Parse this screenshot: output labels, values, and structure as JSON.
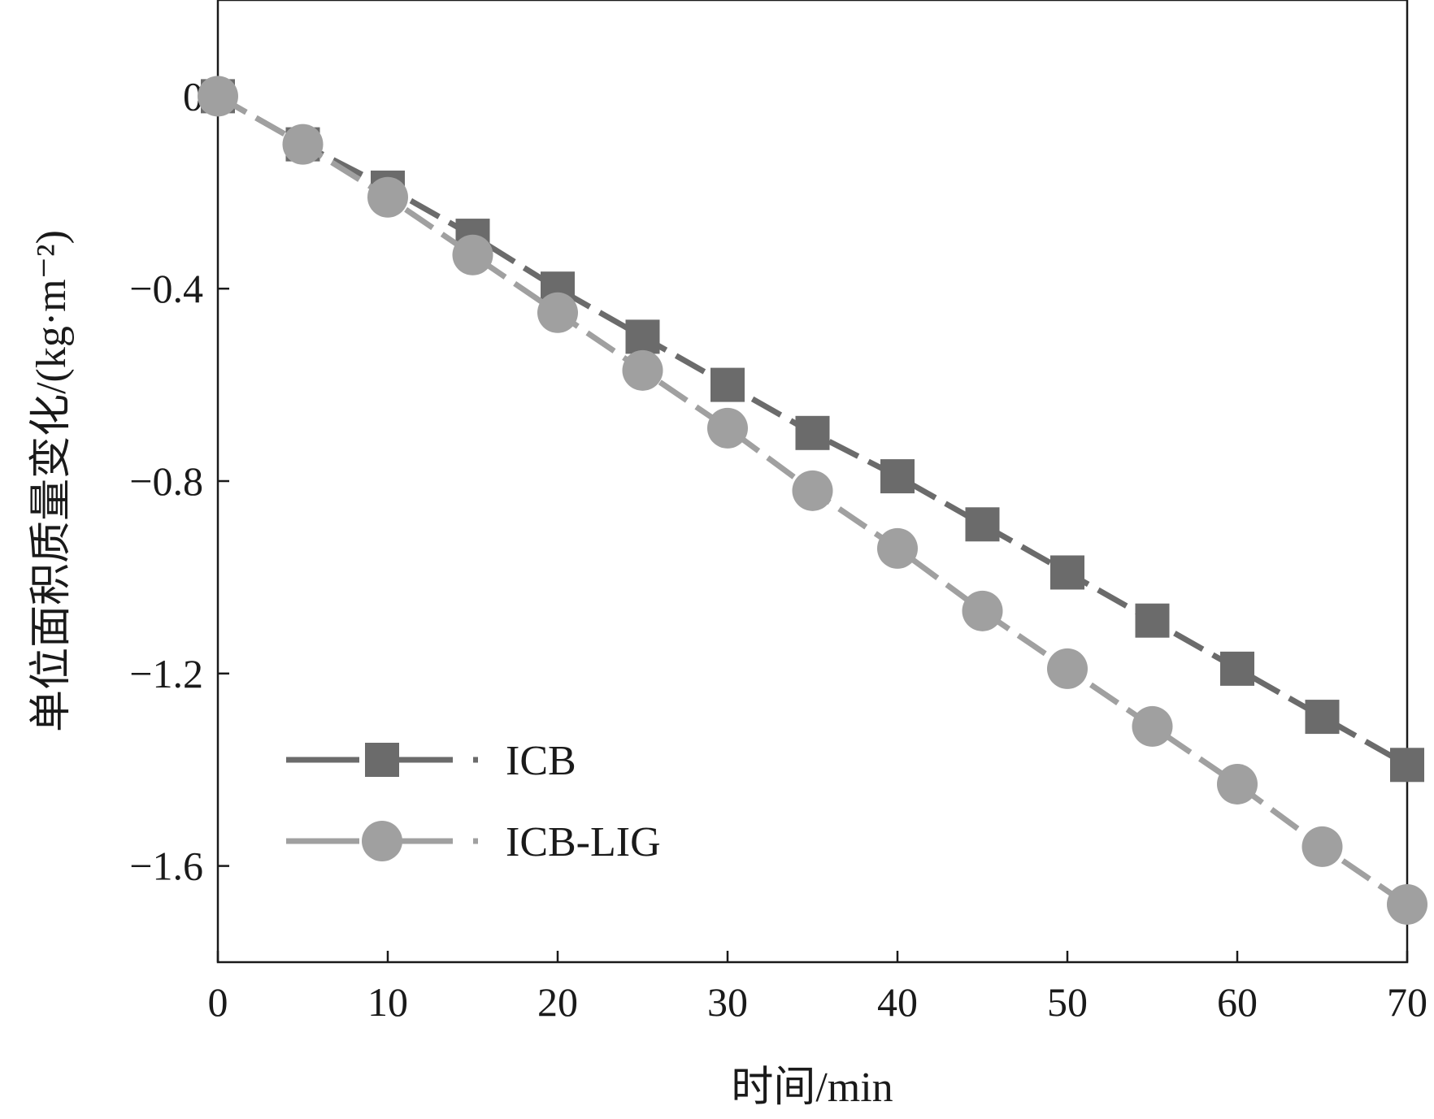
{
  "chart_data": {
    "type": "line",
    "title": "",
    "xlabel": "时间/min",
    "ylabel": "单位面积质量变化/(kg·m⁻²)",
    "xlim": [
      0,
      70
    ],
    "ylim": [
      -1.8,
      0.2
    ],
    "xticks": [
      0,
      10,
      20,
      30,
      40,
      50,
      60,
      70
    ],
    "yticks": [
      0,
      -0.4,
      -0.8,
      -1.2,
      -1.6
    ],
    "xtick_labels": [
      "0",
      "10",
      "20",
      "30",
      "40",
      "50",
      "60",
      "70"
    ],
    "ytick_labels": [
      "0",
      "−0.4",
      "−0.8",
      "−1.2",
      "−1.6"
    ],
    "grid": false,
    "legend_position": "bottom-left",
    "x": [
      0,
      5,
      10,
      15,
      20,
      25,
      30,
      35,
      40,
      45,
      50,
      55,
      60,
      65,
      70
    ],
    "series": [
      {
        "name": "ICB",
        "marker": "square",
        "color": "#6b6b6b",
        "values": [
          0,
          -0.1,
          -0.19,
          -0.29,
          -0.4,
          -0.5,
          -0.6,
          -0.7,
          -0.79,
          -0.89,
          -0.99,
          -1.09,
          -1.19,
          -1.29,
          -1.39
        ]
      },
      {
        "name": "ICB-LIG",
        "marker": "circle",
        "color": "#a0a0a0",
        "values": [
          0,
          -0.1,
          -0.21,
          -0.33,
          -0.45,
          -0.57,
          -0.69,
          -0.82,
          -0.94,
          -1.07,
          -1.19,
          -1.31,
          -1.43,
          -1.56,
          -1.68
        ]
      }
    ]
  }
}
